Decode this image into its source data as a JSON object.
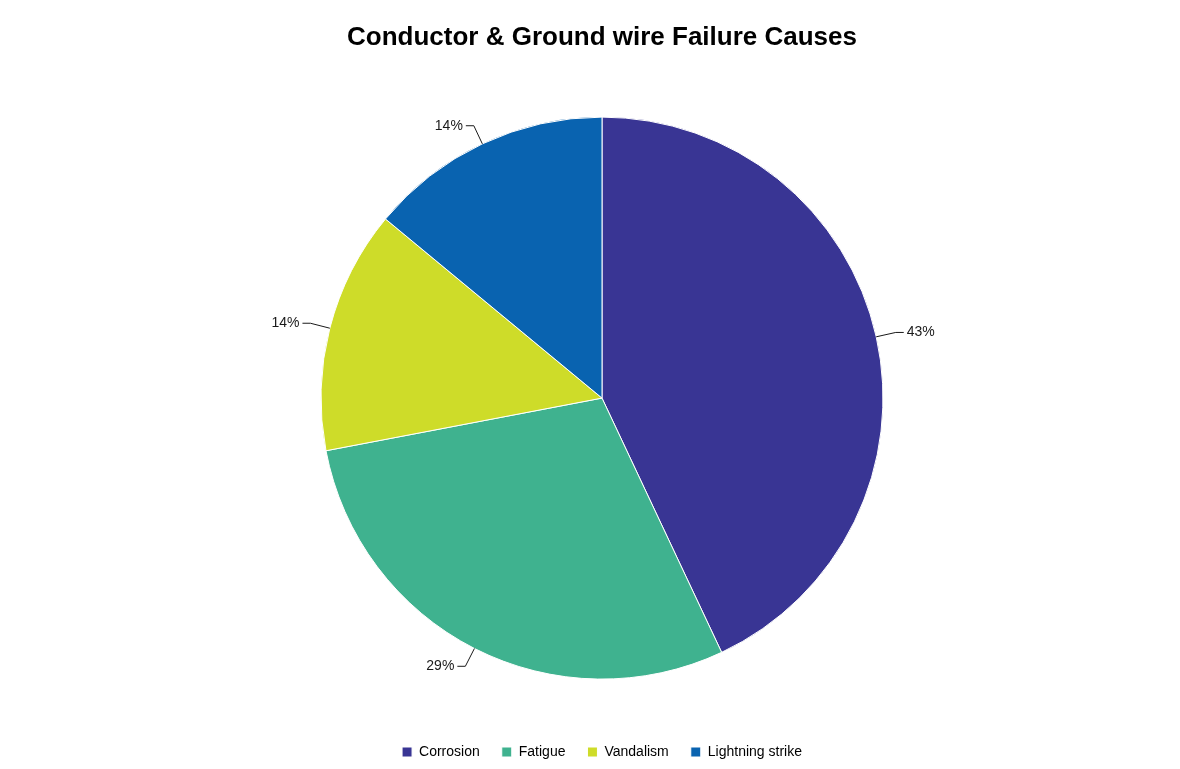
{
  "chart_data": {
    "type": "pie",
    "title": "Conductor & Ground wire Failure Causes",
    "categories": [
      "Corrosion",
      "Fatigue",
      "Vandalism",
      "Lightning strike"
    ],
    "values": [
      43,
      29,
      14,
      14
    ],
    "colors": [
      "#393594",
      "#3fb28f",
      "#cedc29",
      "#0963b0"
    ],
    "value_labels": [
      "43%",
      "29%",
      "14%",
      "14%"
    ],
    "legend": "bottom"
  }
}
